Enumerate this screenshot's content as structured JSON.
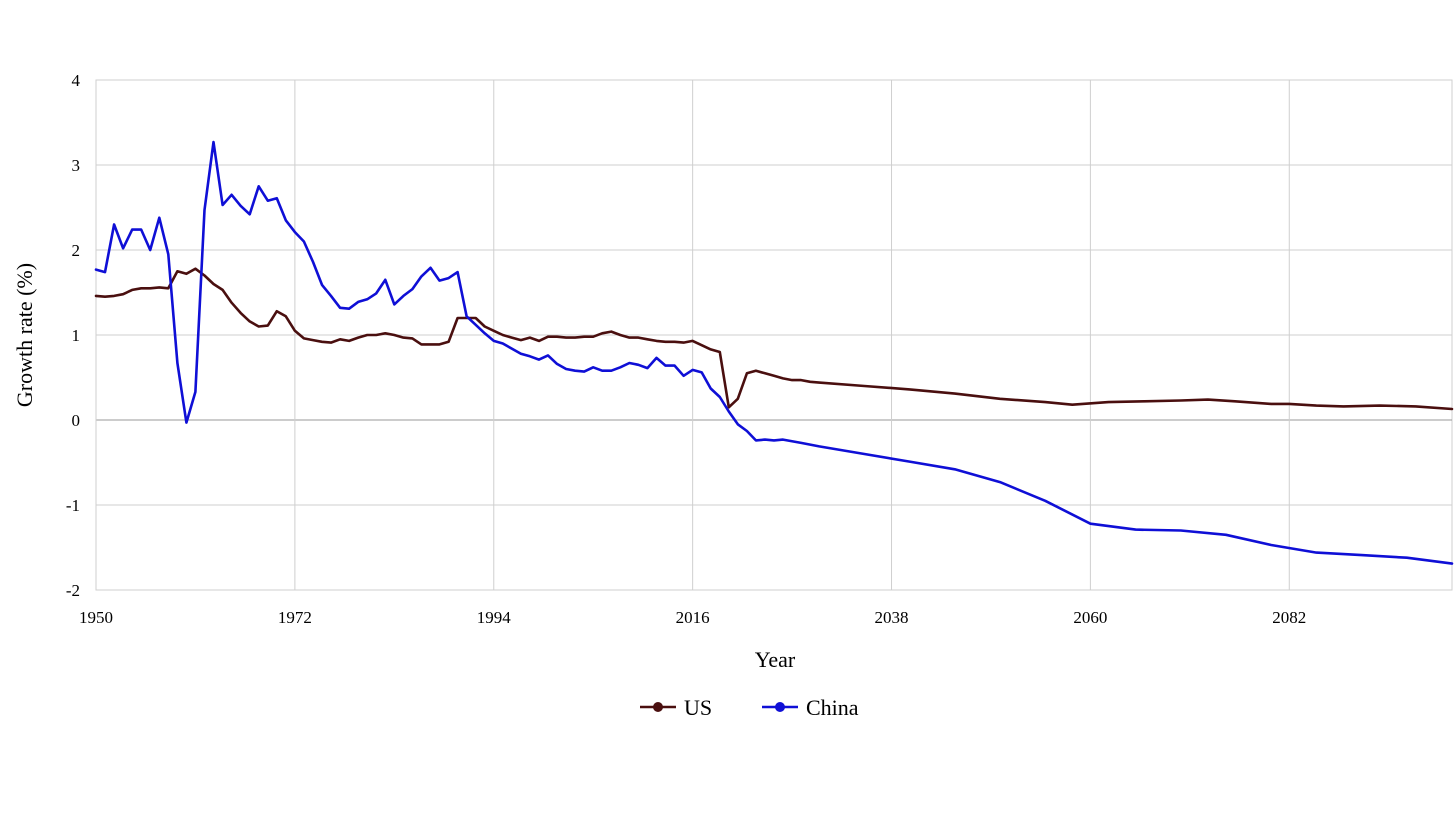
{
  "chart_data": {
    "type": "line",
    "title": "",
    "xlabel": "Year",
    "ylabel": "Growth rate (%)",
    "xlim": [
      1950,
      2100
    ],
    "ylim": [
      -2,
      4
    ],
    "x_ticks": [
      1950,
      1972,
      1994,
      2016,
      2038,
      2060,
      2082
    ],
    "y_ticks": [
      4,
      3,
      2,
      1,
      0,
      -1,
      -2
    ],
    "grid": true,
    "legend_position": "bottom-center",
    "series": [
      {
        "name": "US",
        "color": "#4a0f0f",
        "points": [
          [
            1950,
            1.46
          ],
          [
            1951,
            1.45
          ],
          [
            1952,
            1.46
          ],
          [
            1953,
            1.48
          ],
          [
            1954,
            1.53
          ],
          [
            1955,
            1.55
          ],
          [
            1956,
            1.55
          ],
          [
            1957,
            1.56
          ],
          [
            1958,
            1.55
          ],
          [
            1959,
            1.75
          ],
          [
            1960,
            1.72
          ],
          [
            1961,
            1.78
          ],
          [
            1962,
            1.7
          ],
          [
            1963,
            1.6
          ],
          [
            1964,
            1.53
          ],
          [
            1965,
            1.38
          ],
          [
            1966,
            1.26
          ],
          [
            1967,
            1.16
          ],
          [
            1968,
            1.1
          ],
          [
            1969,
            1.11
          ],
          [
            1970,
            1.28
          ],
          [
            1971,
            1.22
          ],
          [
            1972,
            1.05
          ],
          [
            1973,
            0.96
          ],
          [
            1974,
            0.94
          ],
          [
            1975,
            0.92
          ],
          [
            1976,
            0.91
          ],
          [
            1977,
            0.95
          ],
          [
            1978,
            0.93
          ],
          [
            1979,
            0.97
          ],
          [
            1980,
            1.0
          ],
          [
            1981,
            1.0
          ],
          [
            1982,
            1.02
          ],
          [
            1983,
            1.0
          ],
          [
            1984,
            0.97
          ],
          [
            1985,
            0.96
          ],
          [
            1986,
            0.89
          ],
          [
            1987,
            0.89
          ],
          [
            1988,
            0.89
          ],
          [
            1989,
            0.92
          ],
          [
            1990,
            1.2
          ],
          [
            1991,
            1.2
          ],
          [
            1992,
            1.2
          ],
          [
            1993,
            1.1
          ],
          [
            1994,
            1.05
          ],
          [
            1995,
            1.0
          ],
          [
            1996,
            0.97
          ],
          [
            1997,
            0.94
          ],
          [
            1998,
            0.97
          ],
          [
            1999,
            0.93
          ],
          [
            2000,
            0.98
          ],
          [
            2001,
            0.98
          ],
          [
            2002,
            0.97
          ],
          [
            2003,
            0.97
          ],
          [
            2004,
            0.98
          ],
          [
            2005,
            0.98
          ],
          [
            2006,
            1.02
          ],
          [
            2007,
            1.04
          ],
          [
            2008,
            1.0
          ],
          [
            2009,
            0.97
          ],
          [
            2010,
            0.97
          ],
          [
            2011,
            0.95
          ],
          [
            2012,
            0.93
          ],
          [
            2013,
            0.92
          ],
          [
            2014,
            0.92
          ],
          [
            2015,
            0.91
          ],
          [
            2016,
            0.93
          ],
          [
            2017,
            0.88
          ],
          [
            2018,
            0.83
          ],
          [
            2019,
            0.8
          ],
          [
            2020,
            0.15
          ],
          [
            2021,
            0.25
          ],
          [
            2022,
            0.55
          ],
          [
            2023,
            0.58
          ],
          [
            2024,
            0.55
          ],
          [
            2025,
            0.52
          ],
          [
            2026,
            0.49
          ],
          [
            2027,
            0.47
          ],
          [
            2028,
            0.47
          ],
          [
            2029,
            0.45
          ],
          [
            2030,
            0.44
          ],
          [
            2035,
            0.4
          ],
          [
            2040,
            0.36
          ],
          [
            2045,
            0.31
          ],
          [
            2050,
            0.25
          ],
          [
            2055,
            0.21
          ],
          [
            2058,
            0.18
          ],
          [
            2062,
            0.21
          ],
          [
            2066,
            0.22
          ],
          [
            2070,
            0.23
          ],
          [
            2073,
            0.24
          ],
          [
            2076,
            0.22
          ],
          [
            2080,
            0.19
          ],
          [
            2082,
            0.19
          ],
          [
            2085,
            0.17
          ],
          [
            2088,
            0.16
          ],
          [
            2092,
            0.17
          ],
          [
            2096,
            0.16
          ],
          [
            2100,
            0.13
          ]
        ]
      },
      {
        "name": "China",
        "color": "#0f0fd6",
        "points": [
          [
            1950,
            1.77
          ],
          [
            1951,
            1.74
          ],
          [
            1952,
            2.3
          ],
          [
            1953,
            2.02
          ],
          [
            1954,
            2.24
          ],
          [
            1955,
            2.24
          ],
          [
            1956,
            2.0
          ],
          [
            1957,
            2.38
          ],
          [
            1958,
            1.95
          ],
          [
            1959,
            0.67
          ],
          [
            1960,
            -0.03
          ],
          [
            1961,
            0.33
          ],
          [
            1962,
            2.47
          ],
          [
            1963,
            3.27
          ],
          [
            1964,
            2.53
          ],
          [
            1965,
            2.65
          ],
          [
            1966,
            2.52
          ],
          [
            1967,
            2.42
          ],
          [
            1968,
            2.75
          ],
          [
            1969,
            2.58
          ],
          [
            1970,
            2.61
          ],
          [
            1971,
            2.35
          ],
          [
            1972,
            2.21
          ],
          [
            1973,
            2.1
          ],
          [
            1974,
            1.86
          ],
          [
            1975,
            1.59
          ],
          [
            1976,
            1.46
          ],
          [
            1977,
            1.32
          ],
          [
            1978,
            1.31
          ],
          [
            1979,
            1.39
          ],
          [
            1980,
            1.42
          ],
          [
            1981,
            1.49
          ],
          [
            1982,
            1.65
          ],
          [
            1983,
            1.36
          ],
          [
            1984,
            1.46
          ],
          [
            1985,
            1.54
          ],
          [
            1986,
            1.69
          ],
          [
            1987,
            1.79
          ],
          [
            1988,
            1.64
          ],
          [
            1989,
            1.67
          ],
          [
            1990,
            1.74
          ],
          [
            1991,
            1.22
          ],
          [
            1992,
            1.12
          ],
          [
            1993,
            1.02
          ],
          [
            1994,
            0.93
          ],
          [
            1995,
            0.9
          ],
          [
            1996,
            0.84
          ],
          [
            1997,
            0.78
          ],
          [
            1998,
            0.75
          ],
          [
            1999,
            0.71
          ],
          [
            2000,
            0.76
          ],
          [
            2001,
            0.66
          ],
          [
            2002,
            0.6
          ],
          [
            2003,
            0.58
          ],
          [
            2004,
            0.57
          ],
          [
            2005,
            0.62
          ],
          [
            2006,
            0.58
          ],
          [
            2007,
            0.58
          ],
          [
            2008,
            0.62
          ],
          [
            2009,
            0.67
          ],
          [
            2010,
            0.65
          ],
          [
            2011,
            0.61
          ],
          [
            2012,
            0.73
          ],
          [
            2013,
            0.64
          ],
          [
            2014,
            0.64
          ],
          [
            2015,
            0.52
          ],
          [
            2016,
            0.59
          ],
          [
            2017,
            0.56
          ],
          [
            2018,
            0.37
          ],
          [
            2019,
            0.27
          ],
          [
            2020,
            0.1
          ],
          [
            2021,
            -0.05
          ],
          [
            2022,
            -0.13
          ],
          [
            2023,
            -0.24
          ],
          [
            2024,
            -0.23
          ],
          [
            2025,
            -0.24
          ],
          [
            2026,
            -0.23
          ],
          [
            2028,
            -0.27
          ],
          [
            2030,
            -0.31
          ],
          [
            2035,
            -0.4
          ],
          [
            2040,
            -0.49
          ],
          [
            2045,
            -0.58
          ],
          [
            2050,
            -0.73
          ],
          [
            2055,
            -0.95
          ],
          [
            2060,
            -1.22
          ],
          [
            2065,
            -1.29
          ],
          [
            2070,
            -1.3
          ],
          [
            2075,
            -1.35
          ],
          [
            2080,
            -1.47
          ],
          [
            2085,
            -1.56
          ],
          [
            2090,
            -1.59
          ],
          [
            2095,
            -1.62
          ],
          [
            2100,
            -1.69
          ]
        ]
      }
    ]
  }
}
